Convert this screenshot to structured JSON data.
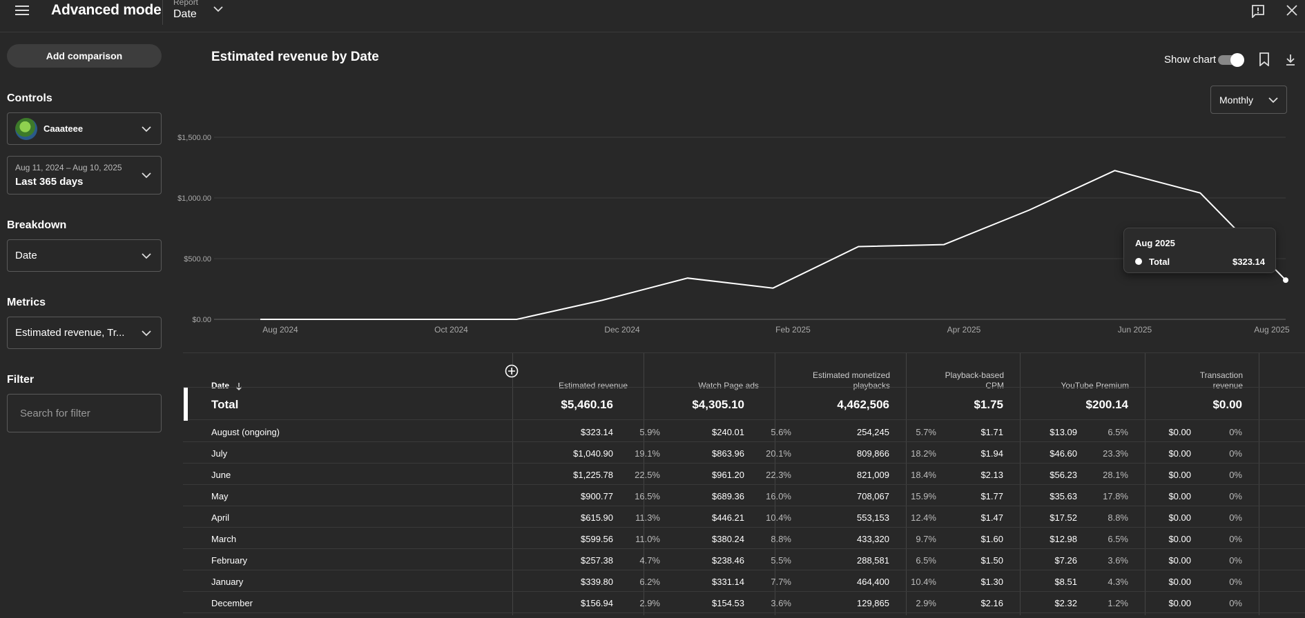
{
  "header": {
    "title": "Advanced mode",
    "report_label": "Report",
    "report_value": "Date"
  },
  "sidebar": {
    "add_comparison": "Add comparison",
    "controls_heading": "Controls",
    "channel_name": "Caaateee",
    "date_range": "Aug 11, 2024 – Aug 10, 2025",
    "date_preset": "Last 365 days",
    "breakdown_heading": "Breakdown",
    "breakdown_value": "Date",
    "metrics_heading": "Metrics",
    "metrics_value": "Estimated revenue, Tr...",
    "filter_heading": "Filter",
    "filter_placeholder": "Search for filter"
  },
  "chart_header": {
    "title": "Estimated revenue by Date",
    "show_chart_label": "Show chart",
    "granularity": "Monthly"
  },
  "chart_data": {
    "type": "line",
    "x": [
      "2024-08",
      "2024-09",
      "2024-10",
      "2024-11",
      "2024-12",
      "2025-01",
      "2025-02",
      "2025-03",
      "2025-04",
      "2025-05",
      "2025-06",
      "2025-07",
      "2025-08"
    ],
    "series": [
      {
        "name": "Total",
        "values": [
          0,
          0,
          0,
          0,
          156.94,
          339.8,
          257.38,
          599.56,
          615.9,
          900.77,
          1225.78,
          1040.9,
          323.14
        ]
      }
    ],
    "y_ticks": [
      "$0.00",
      "$500.00",
      "$1,000.00",
      "$1,500.00"
    ],
    "x_ticks": [
      "Aug 2024",
      "Oct 2024",
      "Dec 2024",
      "Feb 2025",
      "Apr 2025",
      "Jun 2025",
      "Aug 2025"
    ],
    "ylim": [
      0,
      1500
    ],
    "grid": true
  },
  "tooltip": {
    "date": "Aug 2025",
    "series": "Total",
    "value": "$323.14"
  },
  "table": {
    "columns": [
      {
        "label": "Date"
      },
      {
        "label": "Estimated revenue"
      },
      {
        "label": "Watch Page ads"
      },
      {
        "label": "Estimated monetized playbacks"
      },
      {
        "label": "Playback-based CPM"
      },
      {
        "label": "YouTube Premium"
      },
      {
        "label": "Transaction revenue"
      }
    ],
    "total": {
      "label": "Total",
      "values": [
        "$5,460.16",
        "$4,305.10",
        "4,462,506",
        "$1.75",
        "$200.14",
        "$0.00"
      ]
    },
    "rows": [
      {
        "date": "August (ongoing)",
        "rev": "$323.14",
        "rev_pct": "5.9%",
        "ads": "$240.01",
        "ads_pct": "5.6%",
        "play": "254,245",
        "play_pct": "5.7%",
        "cpm": "$1.71",
        "prem": "$13.09",
        "prem_pct": "6.5%",
        "trans": "$0.00",
        "trans_pct": "0%"
      },
      {
        "date": "July",
        "rev": "$1,040.90",
        "rev_pct": "19.1%",
        "ads": "$863.96",
        "ads_pct": "20.1%",
        "play": "809,866",
        "play_pct": "18.2%",
        "cpm": "$1.94",
        "prem": "$46.60",
        "prem_pct": "23.3%",
        "trans": "$0.00",
        "trans_pct": "0%"
      },
      {
        "date": "June",
        "rev": "$1,225.78",
        "rev_pct": "22.5%",
        "ads": "$961.20",
        "ads_pct": "22.3%",
        "play": "821,009",
        "play_pct": "18.4%",
        "cpm": "$2.13",
        "prem": "$56.23",
        "prem_pct": "28.1%",
        "trans": "$0.00",
        "trans_pct": "0%"
      },
      {
        "date": "May",
        "rev": "$900.77",
        "rev_pct": "16.5%",
        "ads": "$689.36",
        "ads_pct": "16.0%",
        "play": "708,067",
        "play_pct": "15.9%",
        "cpm": "$1.77",
        "prem": "$35.63",
        "prem_pct": "17.8%",
        "trans": "$0.00",
        "trans_pct": "0%"
      },
      {
        "date": "April",
        "rev": "$615.90",
        "rev_pct": "11.3%",
        "ads": "$446.21",
        "ads_pct": "10.4%",
        "play": "553,153",
        "play_pct": "12.4%",
        "cpm": "$1.47",
        "prem": "$17.52",
        "prem_pct": "8.8%",
        "trans": "$0.00",
        "trans_pct": "0%"
      },
      {
        "date": "March",
        "rev": "$599.56",
        "rev_pct": "11.0%",
        "ads": "$380.24",
        "ads_pct": "8.8%",
        "play": "433,320",
        "play_pct": "9.7%",
        "cpm": "$1.60",
        "prem": "$12.98",
        "prem_pct": "6.5%",
        "trans": "$0.00",
        "trans_pct": "0%"
      },
      {
        "date": "February",
        "rev": "$257.38",
        "rev_pct": "4.7%",
        "ads": "$238.46",
        "ads_pct": "5.5%",
        "play": "288,581",
        "play_pct": "6.5%",
        "cpm": "$1.50",
        "prem": "$7.26",
        "prem_pct": "3.6%",
        "trans": "$0.00",
        "trans_pct": "0%"
      },
      {
        "date": "January",
        "rev": "$339.80",
        "rev_pct": "6.2%",
        "ads": "$331.14",
        "ads_pct": "7.7%",
        "play": "464,400",
        "play_pct": "10.4%",
        "cpm": "$1.30",
        "prem": "$8.51",
        "prem_pct": "4.3%",
        "trans": "$0.00",
        "trans_pct": "0%"
      },
      {
        "date": "December",
        "rev": "$156.94",
        "rev_pct": "2.9%",
        "ads": "$154.53",
        "ads_pct": "3.6%",
        "play": "129,865",
        "play_pct": "2.9%",
        "cpm": "$2.16",
        "prem": "$2.32",
        "prem_pct": "1.2%",
        "trans": "$0.00",
        "trans_pct": "0%"
      }
    ]
  },
  "icons": {
    "menu": "hamburger-menu-icon",
    "feedback": "feedback-icon",
    "close": "close-icon",
    "bookmark": "bookmark-icon",
    "download": "download-icon",
    "sort": "arrow-down-icon",
    "add_column": "plus-circle-icon"
  }
}
